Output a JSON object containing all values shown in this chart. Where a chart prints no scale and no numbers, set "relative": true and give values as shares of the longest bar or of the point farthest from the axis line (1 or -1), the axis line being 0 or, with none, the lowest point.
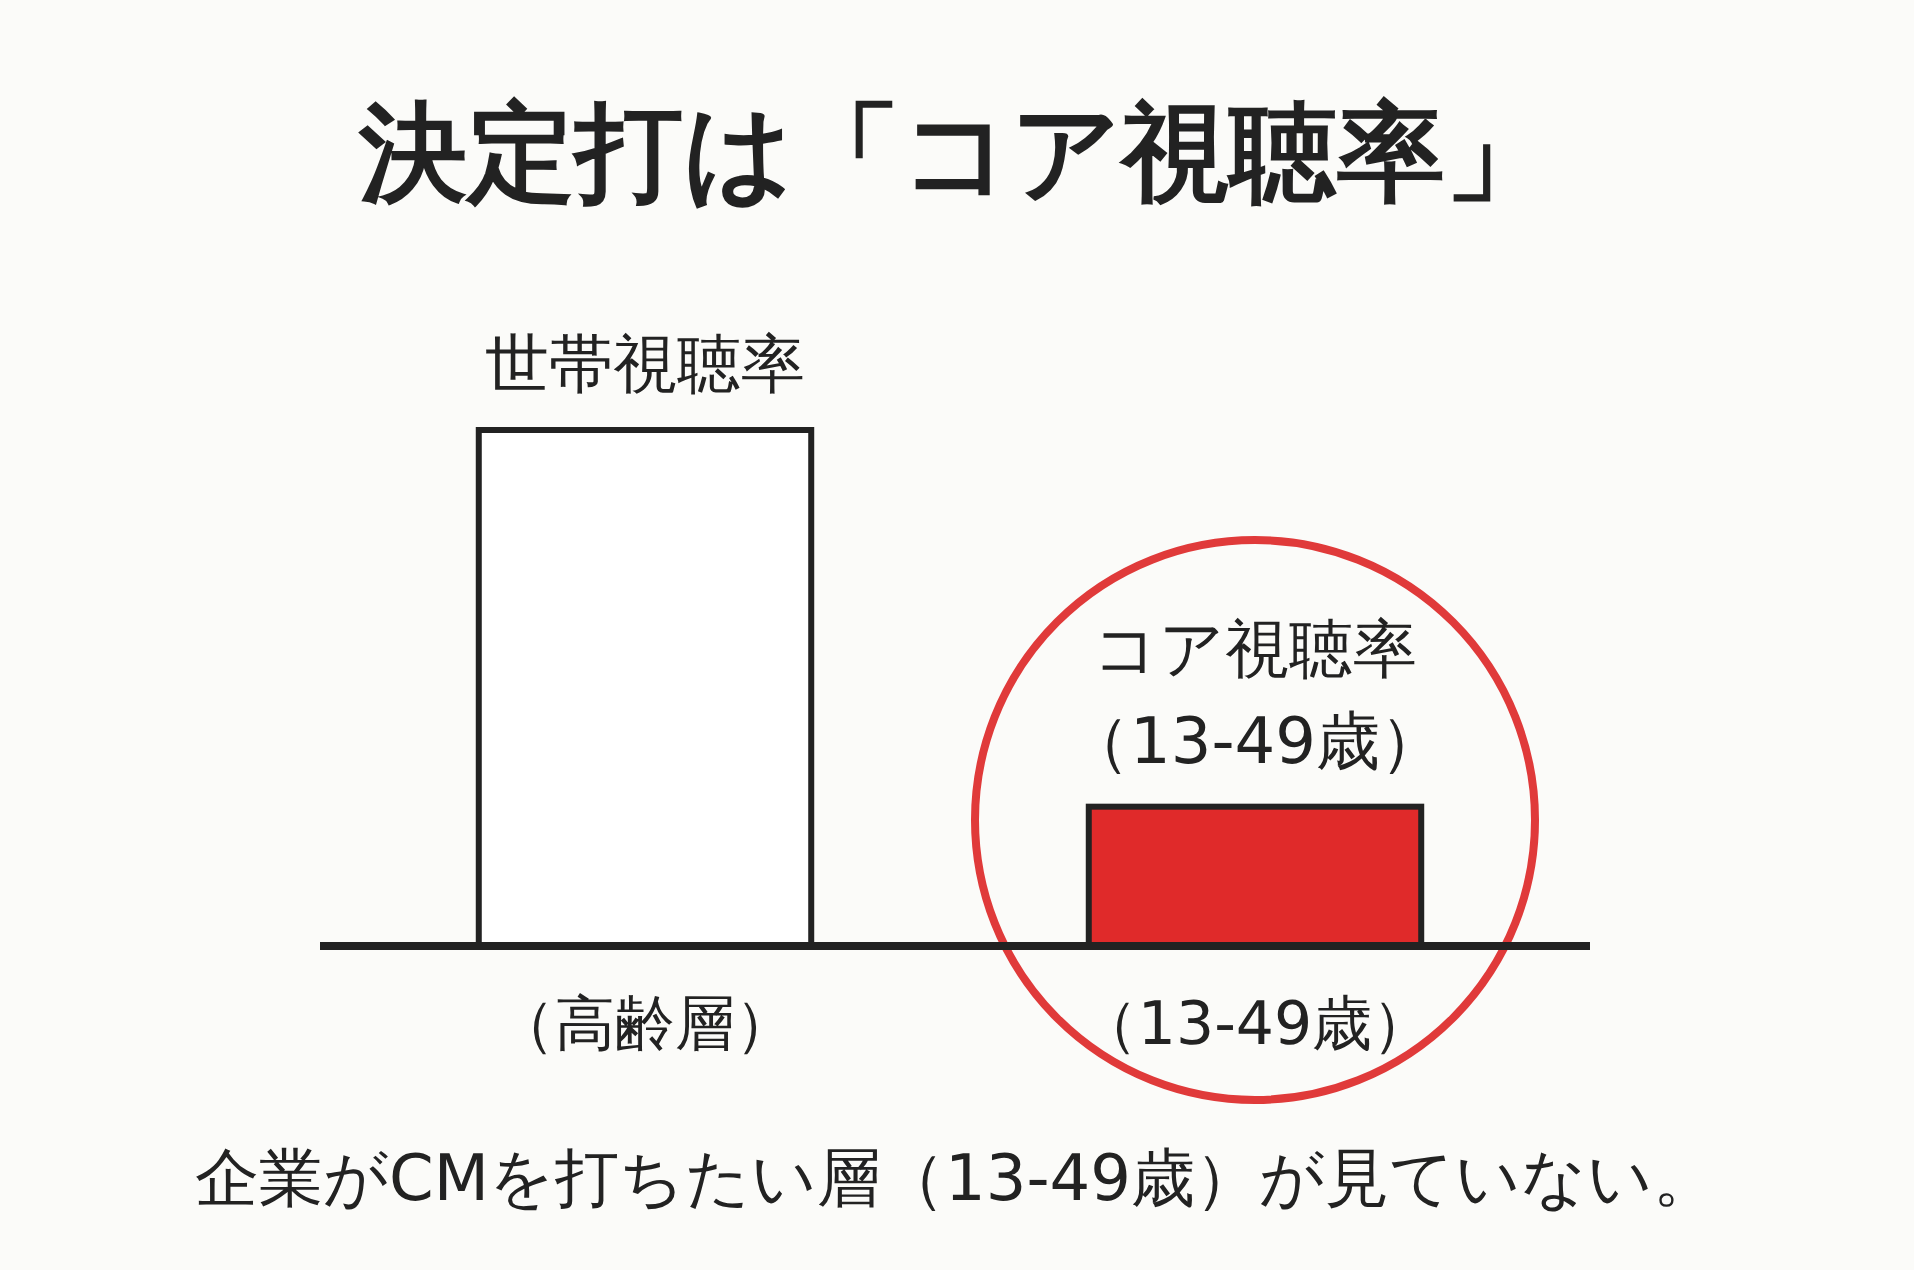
{
  "chart_data": {
    "type": "bar",
    "title": "決定打は「コア視聴率」",
    "categories": [
      "（高齢層）",
      "（13-49歳）"
    ],
    "values": [
      1,
      0.27
    ],
    "colors": [
      "#ffffff",
      "#e02a2a"
    ],
    "relative": true,
    "annotations": [
      {
        "text": "世帯視聴率",
        "x": "（高齢層）",
        "y": 1
      },
      {
        "text": "コア視聴率",
        "x": "（13-49歳）",
        "y": 0.27
      },
      {
        "text": "（13-49歳）",
        "x": "（13-49歳）",
        "y": 0.27
      },
      "企業がCMを打ちたい層（13-49歳）が見ていない。"
    ]
  }
}
